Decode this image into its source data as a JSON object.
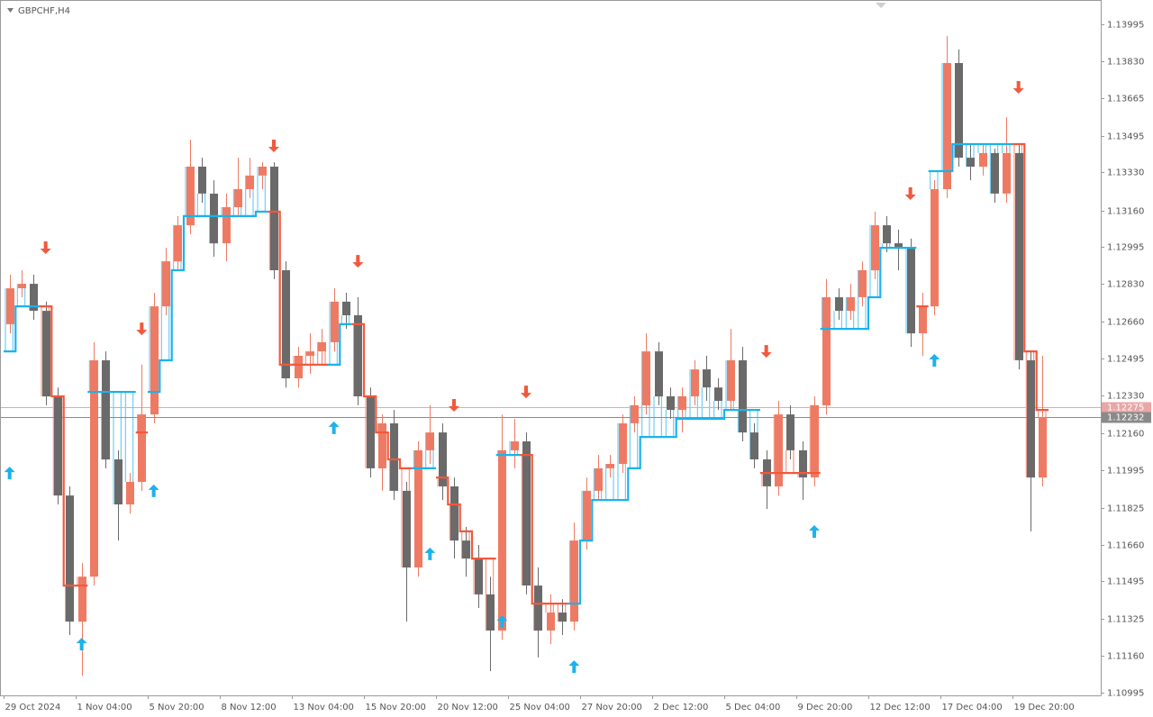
{
  "chart_data": {
    "type": "candlestick",
    "title": "GBPCHF,H4",
    "categories": [
      "29 Oct 2024",
      null,
      null,
      null,
      null,
      null,
      "1 Nov 04:00",
      null,
      null,
      null,
      null,
      null,
      "5 Nov 20:00",
      null,
      null,
      null,
      null,
      null,
      "8 Nov 12:00",
      null,
      null,
      null,
      null,
      null,
      "13 Nov 04:00",
      null,
      null,
      null,
      null,
      null,
      "15 Nov 20:00",
      null,
      null,
      null,
      null,
      null,
      "20 Nov 12:00",
      null,
      null,
      null,
      null,
      null,
      "25 Nov 04:00",
      null,
      null,
      null,
      null,
      null,
      "27 Nov 20:00",
      null,
      null,
      null,
      null,
      null,
      "2 Dec 12:00",
      null,
      null,
      null,
      null,
      null,
      "5 Dec 04:00",
      null,
      null,
      null,
      null,
      null,
      "9 Dec 20:00",
      null,
      null,
      null,
      null,
      null,
      "12 Dec 12:00",
      null,
      null,
      null,
      null,
      null,
      "17 Dec 04:00",
      null,
      null,
      null,
      null,
      null,
      "19 Dec 20:00",
      null,
      null
    ],
    "open": [
      1.12649,
      1.1281,
      1.1283,
      1.12709,
      1.12325,
      1.1188,
      1.11314,
      1.11516,
      1.12487,
      1.12042,
      1.1184,
      1.11941,
      1.12244,
      1.12729,
      1.12931,
      1.13093,
      1.13356,
      1.13235,
      1.13012,
      1.13174,
      1.13255,
      1.13316,
      1.13356,
      1.12891,
      1.12406,
      1.12507,
      1.12527,
      1.12568,
      1.1275,
      1.12689,
      1.12325,
      1.12002,
      1.12204,
      1.11901,
      1.11557,
      1.12083,
      1.12163,
      1.11921,
      1.11678,
      1.11597,
      1.11436,
      1.11274,
      1.12083,
      1.12123,
      1.11476,
      1.11274,
      1.11355,
      1.11314,
      1.11678,
      1.11901,
      1.12002,
      1.12022,
      1.12204,
      1.12285,
      1.12527,
      1.12325,
      1.12264,
      1.12325,
      1.12446,
      1.12365,
      1.12305,
      1.12487,
      1.12163,
      1.12042,
      1.11921,
      1.12244,
      1.12083,
      1.11961,
      1.12285,
      1.1277,
      1.12709,
      1.1277,
      1.12891,
      1.13093,
      1.13012,
      1.12992,
      1.12608,
      1.12729,
      1.13255,
      1.13821,
      1.13396,
      1.13356,
      1.13417,
      1.13235,
      1.13417,
      1.12487,
      1.11961
    ],
    "high": [
      1.12871,
      1.12891,
      1.12871,
      1.1275,
      1.12365,
      1.11921,
      1.11577,
      1.12568,
      1.12527,
      1.12083,
      1.11981,
      1.12467,
      1.1279,
      1.12992,
      1.13134,
      1.13477,
      1.13396,
      1.13295,
      1.13235,
      1.13396,
      1.13396,
      1.13376,
      1.13376,
      1.12931,
      1.12547,
      1.12608,
      1.12628,
      1.1281,
      1.1279,
      1.1277,
      1.12365,
      1.12244,
      1.12264,
      1.11941,
      1.12123,
      1.12285,
      1.12204,
      1.11961,
      1.11739,
      1.11658,
      1.11516,
      1.12244,
      1.12224,
      1.12163,
      1.11557,
      1.11436,
      1.11415,
      1.11759,
      1.11961,
      1.12062,
      1.12062,
      1.12244,
      1.12325,
      1.12608,
      1.12568,
      1.12365,
      1.12365,
      1.12487,
      1.12507,
      1.12406,
      1.12628,
      1.12547,
      1.12204,
      1.12083,
      1.12305,
      1.12285,
      1.12123,
      1.12325,
      1.12851,
      1.1281,
      1.1283,
      1.12931,
      1.13154,
      1.13134,
      1.13073,
      1.13033,
      1.1279,
      1.13295,
      1.13942,
      1.13882,
      1.13457,
      1.13457,
      1.13437,
      1.13578,
      1.13457,
      1.12527,
      1.12507
    ],
    "low": [
      1.12608,
      1.1277,
      1.12669,
      1.12285,
      1.1184,
      1.11254,
      1.11072,
      1.11476,
      1.12002,
      1.11678,
      1.11799,
      1.11901,
      1.12204,
      1.12689,
      1.12891,
      1.13053,
      1.13194,
      1.12952,
      1.12931,
      1.13134,
      1.13215,
      1.13255,
      1.12851,
      1.12365,
      1.12365,
      1.12426,
      1.12467,
      1.12527,
      1.12628,
      1.12285,
      1.11961,
      1.11901,
      1.1186,
      1.11314,
      1.11516,
      1.12022,
      1.1186,
      1.11597,
      1.11516,
      1.11375,
      1.11092,
      1.11233,
      1.12002,
      1.11436,
      1.11153,
      1.11213,
      1.11254,
      1.11274,
      1.11638,
      1.1186,
      1.11961,
      1.11981,
      1.12163,
      1.12244,
      1.12285,
      1.12224,
      1.12163,
      1.12285,
      1.12305,
      1.12264,
      1.12264,
      1.12123,
      1.12002,
      1.1182,
      1.1188,
      1.12042,
      1.1186,
      1.11921,
      1.12244,
      1.12669,
      1.12669,
      1.12729,
      1.12851,
      1.12972,
      1.12891,
      1.12547,
      1.12507,
      1.12689,
      1.13215,
      1.13356,
      1.13295,
      1.13316,
      1.13194,
      1.13194,
      1.12446,
      1.11719,
      1.11921
    ],
    "close": [
      1.1281,
      1.1283,
      1.12709,
      1.12325,
      1.1188,
      1.11314,
      1.11516,
      1.12487,
      1.12042,
      1.1184,
      1.11941,
      1.12244,
      1.12729,
      1.12931,
      1.13093,
      1.13356,
      1.13235,
      1.13012,
      1.13174,
      1.13255,
      1.13316,
      1.13356,
      1.12891,
      1.12406,
      1.12507,
      1.12527,
      1.12568,
      1.1275,
      1.12689,
      1.12325,
      1.12002,
      1.12204,
      1.11901,
      1.11557,
      1.12083,
      1.12163,
      1.11921,
      1.11678,
      1.11597,
      1.11436,
      1.11274,
      1.12083,
      1.12123,
      1.11476,
      1.11274,
      1.11355,
      1.11314,
      1.11678,
      1.11901,
      1.12002,
      1.12022,
      1.12204,
      1.12285,
      1.12527,
      1.12325,
      1.12264,
      1.12325,
      1.12446,
      1.12365,
      1.12305,
      1.12487,
      1.12163,
      1.12042,
      1.11921,
      1.12244,
      1.12083,
      1.11961,
      1.12285,
      1.1277,
      1.12709,
      1.1277,
      1.12891,
      1.13093,
      1.13012,
      1.12992,
      1.12608,
      1.12729,
      1.13255,
      1.13821,
      1.13396,
      1.13356,
      1.13417,
      1.13235,
      1.13417,
      1.12487,
      1.11961,
      1.12232
    ],
    "bull_color": "#ef7a63",
    "bear_color": "#6a6a6a",
    "trail_up": {
      "color": "#1cb2ec",
      "values": [
        1.12527,
        1.12729,
        1.12729,
        null,
        null,
        null,
        null,
        1.12345,
        1.12345,
        1.12345,
        1.12345,
        null,
        1.12345,
        1.12487,
        1.12891,
        1.13134,
        1.13134,
        1.13134,
        1.13134,
        1.13134,
        1.13134,
        1.13154,
        null,
        null,
        null,
        null,
        null,
        1.12467,
        1.12649,
        null,
        null,
        null,
        null,
        null,
        1.12002,
        1.12002,
        null,
        null,
        null,
        null,
        null,
        1.12062,
        1.12062,
        null,
        null,
        null,
        null,
        1.11395,
        1.11678,
        1.1186,
        1.1186,
        1.1186,
        1.12002,
        1.12143,
        1.12143,
        1.12143,
        1.12224,
        1.12224,
        1.12224,
        1.12224,
        1.12264,
        1.12264,
        1.12264,
        null,
        null,
        null,
        null,
        null,
        1.12628,
        1.12628,
        1.12628,
        1.12628,
        1.1277,
        1.12992,
        1.12992,
        1.12992,
        null,
        1.13336,
        1.13336,
        1.13457,
        1.13457,
        1.13457,
        1.13457,
        1.13457,
        null,
        null,
        null
      ]
    },
    "trail_down": {
      "color": "#f2583c",
      "values": [
        null,
        null,
        null,
        1.12729,
        1.12325,
        1.11476,
        1.11476,
        null,
        null,
        null,
        null,
        1.12163,
        null,
        null,
        null,
        null,
        null,
        null,
        null,
        null,
        null,
        null,
        1.13154,
        1.12467,
        1.12467,
        1.12467,
        1.12467,
        null,
        null,
        1.12649,
        1.12325,
        1.12163,
        1.12042,
        1.12002,
        null,
        null,
        1.11961,
        1.1184,
        1.11719,
        1.11597,
        1.11597,
        null,
        null,
        1.12062,
        1.11395,
        1.11395,
        1.11395,
        null,
        null,
        null,
        null,
        null,
        null,
        null,
        null,
        null,
        null,
        null,
        null,
        null,
        null,
        null,
        null,
        1.11981,
        1.11981,
        1.11981,
        1.11981,
        1.11981,
        null,
        null,
        null,
        null,
        null,
        null,
        null,
        null,
        1.12729,
        null,
        null,
        null,
        null,
        null,
        null,
        null,
        1.13457,
        1.12527,
        1.12264
      ]
    },
    "buy_arrows": {
      "color": "#1cb2ec",
      "values": [
        1.11981,
        null,
        null,
        null,
        null,
        null,
        1.11213,
        null,
        null,
        null,
        null,
        null,
        1.11901,
        null,
        null,
        null,
        null,
        null,
        null,
        null,
        null,
        null,
        null,
        null,
        null,
        null,
        null,
        1.12184,
        null,
        null,
        null,
        null,
        null,
        null,
        null,
        1.11618,
        null,
        null,
        null,
        null,
        null,
        1.11314,
        null,
        null,
        null,
        null,
        null,
        1.11112,
        null,
        null,
        null,
        null,
        null,
        null,
        null,
        null,
        null,
        null,
        null,
        null,
        null,
        null,
        null,
        null,
        null,
        null,
        null,
        1.11719,
        null,
        null,
        null,
        null,
        null,
        null,
        null,
        null,
        null,
        1.12487,
        null,
        null,
        null,
        null,
        null,
        null,
        null,
        null,
        null
      ]
    },
    "sell_arrows": {
      "color": "#f2583c",
      "values": [
        null,
        null,
        null,
        1.12992,
        null,
        null,
        null,
        null,
        null,
        null,
        null,
        1.12628,
        null,
        null,
        null,
        null,
        null,
        null,
        null,
        null,
        null,
        null,
        1.13449,
        null,
        null,
        null,
        null,
        null,
        null,
        1.12931,
        null,
        null,
        null,
        null,
        null,
        null,
        null,
        1.12285,
        null,
        null,
        null,
        null,
        null,
        1.12345,
        null,
        null,
        null,
        null,
        null,
        null,
        null,
        null,
        null,
        null,
        null,
        null,
        null,
        null,
        null,
        null,
        null,
        null,
        null,
        1.12527,
        null,
        null,
        null,
        null,
        null,
        null,
        null,
        null,
        null,
        null,
        null,
        1.13235,
        null,
        null,
        null,
        null,
        null,
        null,
        null,
        null,
        1.13712,
        null,
        null
      ]
    },
    "price_lines": [
      {
        "value": 1.12275,
        "color": "#e9a6a6"
      },
      {
        "value": 1.12232,
        "color": "#8a8a8a"
      }
    ],
    "ylim": [
      1.10983,
      1.14104
    ],
    "yticks": [
      1.13995,
      {
        "value": 1.1383,
        "label": "1.13830"
      },
      1.13665,
      1.13495,
      {
        "value": 1.1333,
        "label": "1.13330"
      },
      {
        "value": 1.1316,
        "label": "1.13160"
      },
      1.12995,
      {
        "value": 1.1283,
        "label": "1.12830"
      },
      {
        "value": 1.1266,
        "label": "1.12660"
      },
      1.12495,
      {
        "value": 1.1233,
        "label": "1.12330"
      },
      {
        "value": 1.1216,
        "label": "1.12160"
      },
      1.11995,
      1.11825,
      {
        "value": 1.1166,
        "label": "1.11660"
      },
      1.11495,
      1.11325,
      {
        "value": 1.1116,
        "label": "1.11160"
      },
      1.10995
    ]
  }
}
